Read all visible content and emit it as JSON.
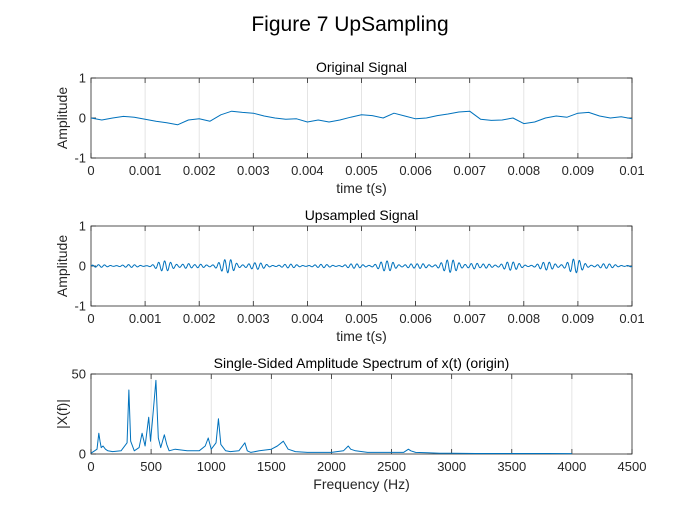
{
  "figure": {
    "title": "Figure 7 UpSampling"
  },
  "chart_data": [
    {
      "type": "line",
      "title": "Original Signal",
      "xlabel": "time t(s)",
      "ylabel": "Amplitude",
      "xlim": [
        0,
        0.01
      ],
      "ylim": [
        -1,
        1
      ],
      "xticks": [
        0,
        0.001,
        0.002,
        0.003,
        0.004,
        0.005,
        0.006,
        0.007,
        0.008,
        0.009,
        0.01
      ],
      "yticks": [
        -1,
        0,
        1
      ],
      "grid": "x",
      "color": "#0072bd",
      "series": [
        {
          "x": [
            0,
            0.0002,
            0.0004,
            0.0006,
            0.0008,
            0.001,
            0.0012,
            0.0014,
            0.0016,
            0.0018,
            0.002,
            0.0022,
            0.0024,
            0.0026,
            0.0028,
            0.003,
            0.0032,
            0.0034,
            0.0036,
            0.0038,
            0.004,
            0.0042,
            0.0044,
            0.0046,
            0.0048,
            0.005,
            0.0052,
            0.0054,
            0.0056,
            0.0058,
            0.006,
            0.0062,
            0.0064,
            0.0066,
            0.0068,
            0.007,
            0.0072,
            0.0074,
            0.0076,
            0.0078,
            0.008,
            0.0082,
            0.0084,
            0.0086,
            0.0088,
            0.009,
            0.0092,
            0.0094,
            0.0096,
            0.0098,
            0.01
          ],
          "y": [
            0.0,
            -0.05,
            0.0,
            0.04,
            0.02,
            -0.03,
            -0.08,
            -0.12,
            -0.17,
            -0.05,
            -0.02,
            -0.08,
            0.08,
            0.17,
            0.14,
            0.12,
            0.05,
            0.0,
            -0.03,
            -0.02,
            -0.1,
            -0.05,
            -0.1,
            -0.05,
            0.02,
            0.08,
            0.06,
            0.0,
            0.12,
            0.05,
            -0.02,
            0.0,
            0.06,
            0.1,
            0.15,
            0.17,
            -0.03,
            -0.06,
            -0.05,
            0.0,
            -0.14,
            -0.1,
            0.0,
            0.05,
            0.02,
            0.12,
            0.14,
            0.05,
            0.0,
            0.03,
            -0.02
          ]
        }
      ]
    },
    {
      "type": "line",
      "title": "Upsampled Signal",
      "xlabel": "time t(s)",
      "ylabel": "Amplitude",
      "xlim": [
        0,
        0.01
      ],
      "ylim": [
        -1,
        1
      ],
      "xticks": [
        0,
        0.001,
        0.002,
        0.003,
        0.004,
        0.005,
        0.006,
        0.007,
        0.008,
        0.009,
        0.01
      ],
      "yticks": [
        -1,
        0,
        1
      ],
      "grid": "x",
      "color": "#0072bd",
      "envelope_x": [
        0,
        0.0005,
        0.001,
        0.0013,
        0.0016,
        0.0019,
        0.0022,
        0.0026,
        0.003,
        0.0035,
        0.0042,
        0.005,
        0.0056,
        0.006,
        0.0065,
        0.0069,
        0.0072,
        0.0076,
        0.0078,
        0.0082,
        0.0085,
        0.0089,
        0.0092,
        0.0096,
        0.01
      ],
      "envelope_y": [
        0.03,
        0.04,
        0.03,
        0.12,
        0.18,
        0.03,
        0.1,
        0.19,
        0.09,
        0.05,
        0.04,
        0.06,
        0.15,
        0.05,
        0.14,
        0.2,
        0.04,
        0.14,
        0.1,
        0.06,
        0.12,
        0.19,
        0.1,
        0.05,
        0.04
      ]
    },
    {
      "type": "line",
      "title": "Single-Sided Amplitude Spectrum of x(t) (origin)",
      "xlabel": "Frequency (Hz)",
      "ylabel": "|X(f)|",
      "xlim": [
        0,
        4500
      ],
      "ylim": [
        0,
        50
      ],
      "xticks": [
        0,
        500,
        1000,
        1500,
        2000,
        2500,
        3000,
        3500,
        4000,
        4500
      ],
      "yticks": [
        0,
        50
      ],
      "grid": "x",
      "color": "#0072bd",
      "series": [
        {
          "x": [
            0,
            30,
            50,
            65,
            75,
            85,
            100,
            120,
            140,
            180,
            250,
            300,
            315,
            330,
            360,
            400,
            425,
            450,
            480,
            495,
            510,
            540,
            560,
            580,
            610,
            630,
            650,
            700,
            800,
            900,
            950,
            975,
            1000,
            1040,
            1060,
            1080,
            1120,
            1160,
            1230,
            1280,
            1300,
            1330,
            1400,
            1500,
            1550,
            1600,
            1640,
            1700,
            1800,
            1900,
            2000,
            2100,
            2140,
            2160,
            2200,
            2300,
            2400,
            2500,
            2600,
            2640,
            2660,
            2700,
            2800,
            2900,
            3000,
            3200,
            3500,
            3800,
            4000
          ],
          "y": [
            0.5,
            2,
            3,
            13,
            8,
            4,
            5,
            3,
            2,
            1.5,
            2,
            7,
            40,
            8,
            2,
            4,
            13,
            5,
            23,
            8,
            20,
            46,
            10,
            4,
            12,
            6,
            2,
            3,
            2,
            2,
            5,
            10,
            3,
            7,
            22,
            6,
            2,
            1.5,
            2,
            7,
            2,
            1,
            2,
            3,
            5,
            8,
            3,
            1.5,
            1,
            1,
            1,
            2,
            5,
            3,
            2,
            1,
            1,
            1,
            1,
            3,
            2,
            1,
            0.8,
            0.5,
            0.5,
            0.3,
            0.3,
            0.3,
            0.2
          ]
        }
      ]
    }
  ]
}
